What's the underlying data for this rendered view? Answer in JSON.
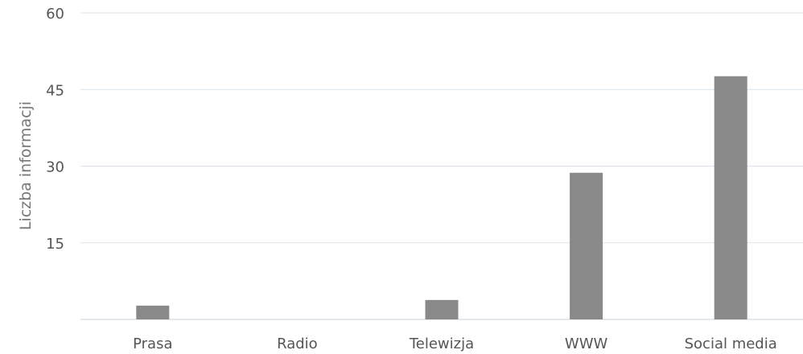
{
  "chart_data": {
    "type": "bar",
    "title": "",
    "xlabel": "",
    "ylabel": "Liczba informacji",
    "categories": [
      "Prasa",
      "Radio",
      "Telewizja",
      "WWW",
      "Social media"
    ],
    "values": [
      2.7,
      0,
      3.8,
      28.7,
      47.6
    ],
    "ylim": [
      0,
      60
    ],
    "yticks": [
      15,
      30,
      45,
      60
    ],
    "ytick_labels": [
      "15",
      "30",
      "45",
      "60"
    ],
    "grid": true,
    "legend": "none",
    "bar_color": "#898989"
  }
}
